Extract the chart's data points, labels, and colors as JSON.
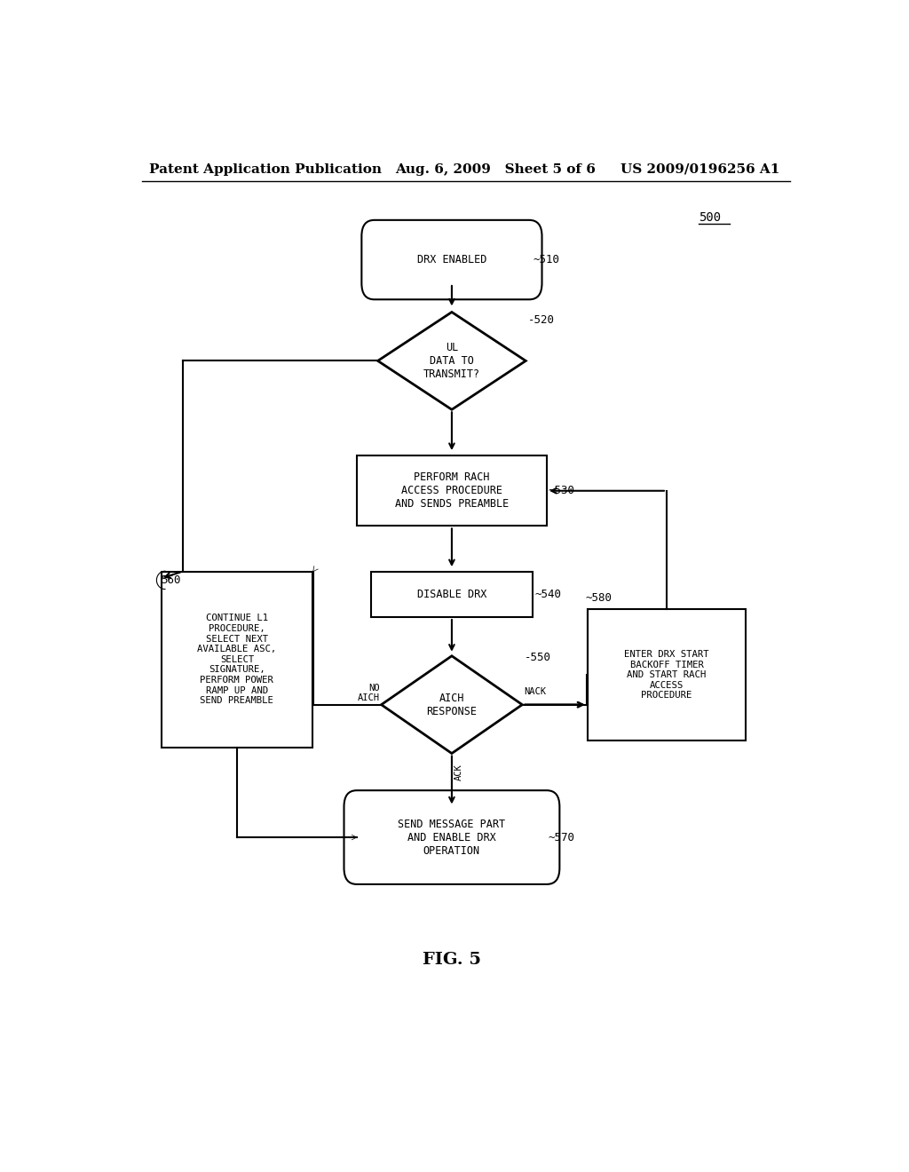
{
  "title_left": "Patent Application Publication",
  "title_center": "Aug. 6, 2009   Sheet 5 of 6",
  "title_right": "US 2009/0196256 A1",
  "fig_label": "FIG. 5",
  "diagram_label": "500",
  "background_color": "#ffffff",
  "line_color": "#000000",
  "text_color": "#000000",
  "font_size_node": 8.5,
  "font_size_tag": 9,
  "font_size_header": 11,
  "font_size_fig": 14
}
